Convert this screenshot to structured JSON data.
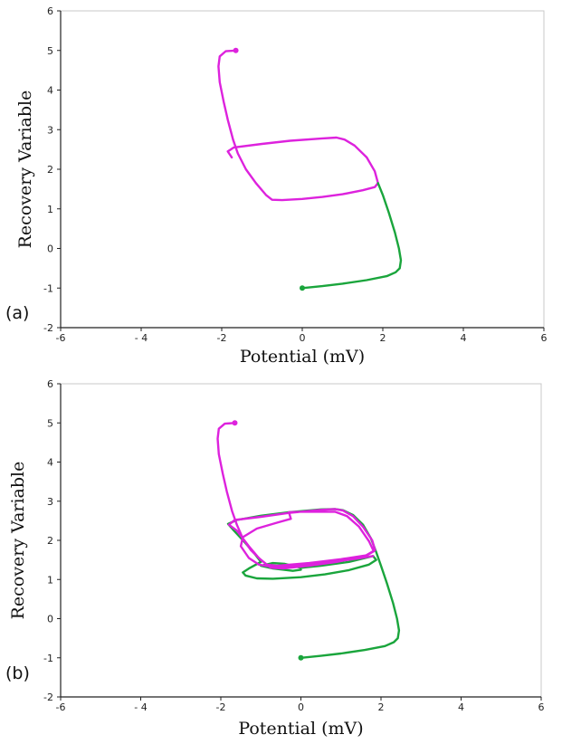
{
  "chart_data": [
    {
      "type": "line",
      "panel_label": "(a)",
      "xlabel": "Potential (mV)",
      "ylabel": "Recovery Variable",
      "xlim": [
        -6,
        6
      ],
      "ylim": [
        -2,
        6
      ],
      "xticks": [
        "-6",
        "- 4",
        "-2",
        "0",
        "2",
        "4",
        "6"
      ],
      "yticks": [
        "-2",
        "-1",
        "0",
        "1",
        "2",
        "3",
        "4",
        "5",
        "6"
      ],
      "grid": false,
      "series": [
        {
          "color": "#dd22dd",
          "marker_start": true,
          "points": [
            [
              -1.65,
              5.0
            ],
            [
              -1.9,
              4.98
            ],
            [
              -2.05,
              4.85
            ],
            [
              -2.08,
              4.6
            ],
            [
              -2.05,
              4.2
            ],
            [
              -1.95,
              3.7
            ],
            [
              -1.85,
              3.25
            ],
            [
              -1.72,
              2.75
            ],
            [
              -1.6,
              2.4
            ],
            [
              -1.4,
              2.0
            ],
            [
              -1.15,
              1.65
            ],
            [
              -0.9,
              1.35
            ],
            [
              -0.75,
              1.23
            ],
            [
              -0.5,
              1.22
            ],
            [
              0.0,
              1.25
            ],
            [
              0.5,
              1.3
            ],
            [
              1.0,
              1.37
            ],
            [
              1.5,
              1.47
            ],
            [
              1.8,
              1.55
            ],
            [
              1.88,
              1.65
            ],
            [
              1.8,
              1.95
            ],
            [
              1.6,
              2.3
            ],
            [
              1.3,
              2.6
            ],
            [
              1.05,
              2.75
            ],
            [
              0.85,
              2.8
            ],
            [
              0.5,
              2.78
            ],
            [
              -0.3,
              2.72
            ],
            [
              -1.0,
              2.64
            ],
            [
              -1.7,
              2.55
            ],
            [
              -1.85,
              2.45
            ],
            [
              -1.75,
              2.3
            ]
          ]
        },
        {
          "color": "#1aa53c",
          "marker_start": true,
          "points": [
            [
              0.0,
              -1.0
            ],
            [
              0.5,
              -0.95
            ],
            [
              1.0,
              -0.89
            ],
            [
              1.6,
              -0.8
            ],
            [
              2.1,
              -0.7
            ],
            [
              2.32,
              -0.6
            ],
            [
              2.42,
              -0.5
            ],
            [
              2.45,
              -0.3
            ],
            [
              2.4,
              0.0
            ],
            [
              2.3,
              0.4
            ],
            [
              2.15,
              0.9
            ],
            [
              2.0,
              1.35
            ],
            [
              1.88,
              1.65
            ]
          ]
        }
      ]
    },
    {
      "type": "line",
      "panel_label": "(b)",
      "xlabel": "Potential (mV)",
      "ylabel": "Recovery Variable",
      "xlim": [
        -6,
        6
      ],
      "ylim": [
        -2,
        6
      ],
      "xticks": [
        "-6",
        "- 4",
        "-2",
        "0",
        "2",
        "4",
        "6"
      ],
      "yticks": [
        "-2",
        "-1",
        "0",
        "1",
        "2",
        "3",
        "4",
        "5",
        "6"
      ],
      "grid": false,
      "series": [
        {
          "color": "#1aa53c",
          "marker_start": true,
          "points": [
            [
              0.0,
              -1.0
            ],
            [
              0.5,
              -0.95
            ],
            [
              1.0,
              -0.89
            ],
            [
              1.6,
              -0.8
            ],
            [
              2.1,
              -0.7
            ],
            [
              2.32,
              -0.6
            ],
            [
              2.42,
              -0.5
            ],
            [
              2.45,
              -0.3
            ],
            [
              2.4,
              0.0
            ],
            [
              2.3,
              0.4
            ],
            [
              2.15,
              0.9
            ],
            [
              2.0,
              1.35
            ],
            [
              1.88,
              1.7
            ],
            [
              1.75,
              2.05
            ],
            [
              1.55,
              2.4
            ],
            [
              1.3,
              2.65
            ],
            [
              1.05,
              2.77
            ],
            [
              0.85,
              2.8
            ],
            [
              0.5,
              2.79
            ],
            [
              -0.3,
              2.72
            ],
            [
              -1.0,
              2.63
            ],
            [
              -1.6,
              2.52
            ],
            [
              -1.82,
              2.42
            ],
            [
              -1.7,
              2.28
            ],
            [
              -1.4,
              1.95
            ],
            [
              -1.15,
              1.65
            ],
            [
              -1.0,
              1.45
            ],
            [
              -1.3,
              1.28
            ],
            [
              -1.45,
              1.18
            ],
            [
              -1.38,
              1.1
            ],
            [
              -1.1,
              1.03
            ],
            [
              -0.7,
              1.02
            ],
            [
              0.0,
              1.06
            ],
            [
              0.6,
              1.13
            ],
            [
              1.2,
              1.24
            ],
            [
              1.7,
              1.38
            ],
            [
              1.88,
              1.5
            ],
            [
              1.8,
              1.6
            ],
            [
              1.2,
              1.45
            ],
            [
              0.5,
              1.35
            ],
            [
              0.0,
              1.3
            ],
            [
              -0.4,
              1.4
            ],
            [
              -0.7,
              1.42
            ],
            [
              -1.0,
              1.35
            ],
            [
              -0.7,
              1.28
            ],
            [
              -0.2,
              1.22
            ],
            [
              0.0,
              1.25
            ]
          ]
        },
        {
          "color": "#dd22dd",
          "marker_start": true,
          "points": [
            [
              -1.65,
              5.0
            ],
            [
              -1.9,
              4.98
            ],
            [
              -2.05,
              4.85
            ],
            [
              -2.08,
              4.6
            ],
            [
              -2.05,
              4.2
            ],
            [
              -1.95,
              3.7
            ],
            [
              -1.85,
              3.25
            ],
            [
              -1.72,
              2.75
            ],
            [
              -1.6,
              2.4
            ],
            [
              -1.45,
              2.05
            ],
            [
              -1.25,
              1.75
            ],
            [
              -1.0,
              1.5
            ],
            [
              -0.75,
              1.3
            ],
            [
              -0.45,
              1.28
            ],
            [
              0.2,
              1.35
            ],
            [
              0.9,
              1.45
            ],
            [
              1.6,
              1.6
            ],
            [
              1.85,
              1.75
            ],
            [
              1.78,
              2.0
            ],
            [
              1.55,
              2.35
            ],
            [
              1.3,
              2.62
            ],
            [
              1.05,
              2.76
            ],
            [
              0.85,
              2.8
            ],
            [
              0.5,
              2.78
            ],
            [
              -0.3,
              2.7
            ],
            [
              -1.0,
              2.6
            ],
            [
              -1.65,
              2.52
            ],
            [
              -1.8,
              2.4
            ],
            [
              -1.6,
              2.25
            ],
            [
              -1.3,
              1.85
            ],
            [
              -1.05,
              1.55
            ],
            [
              -0.85,
              1.38
            ],
            [
              -0.6,
              1.35
            ],
            [
              0.2,
              1.42
            ],
            [
              1.0,
              1.52
            ],
            [
              1.65,
              1.62
            ],
            [
              1.82,
              1.72
            ],
            [
              1.7,
              1.98
            ],
            [
              1.45,
              2.35
            ],
            [
              1.15,
              2.62
            ],
            [
              0.85,
              2.73
            ],
            [
              0.0,
              2.73
            ],
            [
              -0.3,
              2.72
            ],
            [
              -0.25,
              2.55
            ],
            [
              -0.6,
              2.45
            ],
            [
              -1.1,
              2.3
            ],
            [
              -1.45,
              2.08
            ],
            [
              -1.5,
              1.85
            ],
            [
              -1.3,
              1.55
            ],
            [
              -1.05,
              1.38
            ],
            [
              -0.7,
              1.32
            ],
            [
              0.0,
              1.35
            ],
            [
              0.8,
              1.45
            ],
            [
              1.5,
              1.55
            ],
            [
              1.8,
              1.6
            ]
          ]
        }
      ]
    }
  ]
}
